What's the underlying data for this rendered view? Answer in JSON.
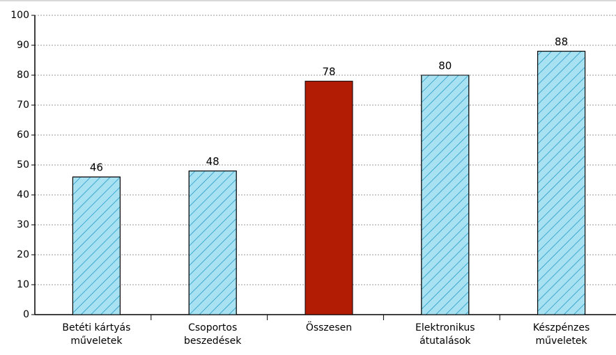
{
  "chart_data": {
    "type": "bar",
    "categories": [
      "Betéti kártyás műveletek",
      "Csoportos beszedések",
      "Összesen",
      "Elektronikus átutalások",
      "Készpénzes műveletek"
    ],
    "values": [
      46,
      48,
      78,
      80,
      88
    ],
    "colors": [
      "#a8e2f2",
      "#a8e2f2",
      "#b21c04",
      "#a8e2f2",
      "#a8e2f2"
    ],
    "hatched": [
      true,
      true,
      false,
      true,
      true
    ],
    "ylim": [
      0,
      100
    ],
    "yticks": [
      0,
      10,
      20,
      30,
      40,
      50,
      60,
      70,
      80,
      90,
      100
    ],
    "grid": true
  }
}
